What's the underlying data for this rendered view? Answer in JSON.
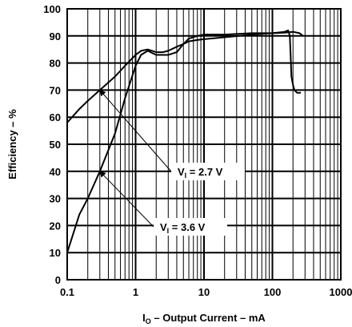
{
  "chart_data": {
    "type": "line",
    "xscale": "log",
    "xlim": [
      0.1,
      1000
    ],
    "ylim": [
      0,
      100
    ],
    "grid": true,
    "xticks": [
      "0.1",
      "1",
      "10",
      "100",
      "1000"
    ],
    "yticks": [
      "0",
      "10",
      "20",
      "30",
      "40",
      "50",
      "60",
      "70",
      "80",
      "90",
      "100"
    ],
    "xlabel": {
      "main": "I",
      "sub": "O",
      "rest": " – Output Current – mA"
    },
    "ylabel": "Efficiency – %",
    "series": [
      {
        "name": "VI = 2.7 V",
        "label_main": "V",
        "label_sub": "I",
        "label_rest": " = 2.7 V",
        "x": [
          0.1,
          0.15,
          0.2,
          0.3,
          0.5,
          0.7,
          1.0,
          1.2,
          1.5,
          2.0,
          2.5,
          3.0,
          4.0,
          5.0,
          6.0,
          8.0,
          10,
          20,
          50,
          100,
          150,
          170,
          180,
          190,
          200,
          210,
          230,
          260
        ],
        "y": [
          58,
          63,
          66,
          70,
          75,
          79,
          83,
          84.5,
          85,
          84,
          84,
          84.5,
          86,
          87,
          88,
          88.5,
          88.8,
          89.5,
          90.5,
          91,
          91.5,
          92,
          90,
          75,
          72,
          70,
          69,
          69
        ]
      },
      {
        "name": "VI = 3.6 V",
        "label_main": "V",
        "label_sub": "I",
        "label_rest": " = 3.6 V",
        "x": [
          0.1,
          0.15,
          0.2,
          0.3,
          0.5,
          0.7,
          1.0,
          1.2,
          1.5,
          2.0,
          3.0,
          4.0,
          5.0,
          6.0,
          8.0,
          10,
          15,
          20,
          50,
          100,
          150,
          200,
          250,
          280
        ],
        "y": [
          10,
          24,
          30,
          40,
          54,
          67,
          79,
          83,
          84.5,
          83,
          83,
          84,
          87,
          89,
          90,
          90.5,
          90.5,
          90.5,
          91,
          91,
          91.2,
          91.5,
          91,
          90
        ]
      }
    ],
    "annotations": [
      {
        "series": 0,
        "text_main": "V",
        "text_sub": "I",
        "text_rest": " = 2.7 V",
        "point": [
          0.3,
          70
        ]
      },
      {
        "series": 1,
        "text_main": "V",
        "text_sub": "I",
        "text_rest": " = 3.6 V",
        "point": [
          0.3,
          40
        ]
      }
    ]
  }
}
